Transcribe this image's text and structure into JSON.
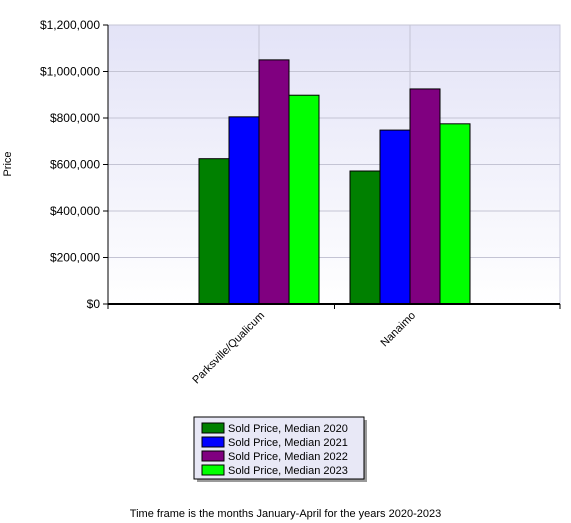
{
  "chart_data": {
    "type": "bar",
    "categories": [
      "Parksville/Qualicum",
      "Nanaimo"
    ],
    "series": [
      {
        "name": "Sold Price, Median 2020",
        "color": "#008000",
        "values": [
          625000,
          572000
        ]
      },
      {
        "name": "Sold Price, Median 2021",
        "color": "#0000FF",
        "values": [
          805000,
          748000
        ]
      },
      {
        "name": "Sold Price, Median 2022",
        "color": "#800080",
        "values": [
          1050000,
          925000
        ]
      },
      {
        "name": "Sold Price, Median 2023",
        "color": "#00FF00",
        "values": [
          898000,
          775000
        ]
      }
    ],
    "title": "",
    "xlabel": "",
    "ylabel": "Price",
    "ylim": [
      0,
      1200000
    ],
    "yticks": [
      0,
      200000,
      400000,
      600000,
      800000,
      1000000,
      1200000
    ],
    "ytick_labels": [
      "$0",
      "$200,000",
      "$400,000",
      "$600,000",
      "$800,000",
      "$1,000,000",
      "$1,200,000"
    ],
    "grid": true,
    "legend_position": "bottom-center"
  },
  "footnote": "Time frame is the months January-April for the years 2020-2023"
}
